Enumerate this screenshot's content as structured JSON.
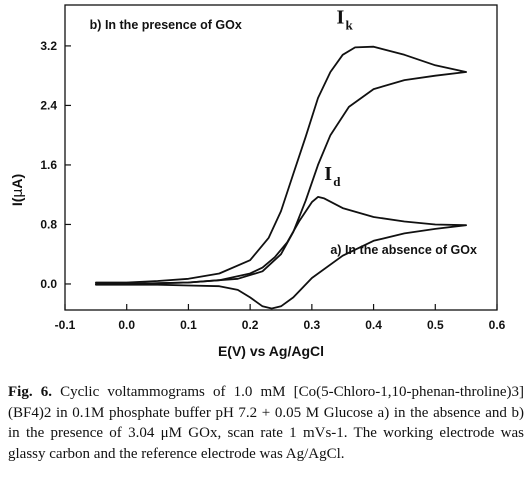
{
  "chart_data": {
    "type": "line",
    "title": "",
    "xlabel": "E(V) vs Ag/AgCl",
    "ylabel_main": "I(",
    "ylabel_mu": "μ",
    "ylabel_end": "A)",
    "xlim": [
      -0.1,
      0.6
    ],
    "ylim": [
      -0.35,
      3.75
    ],
    "x_ticks": [
      -0.1,
      0.0,
      0.1,
      0.2,
      0.3,
      0.4,
      0.5,
      0.6
    ],
    "x_tick_labels": [
      "-0.1",
      "0.0",
      "0.1",
      "0.2",
      "0.3",
      "0.4",
      "0.5",
      "0.6"
    ],
    "y_ticks": [
      0.0,
      0.8,
      1.6,
      2.4,
      3.2
    ],
    "y_tick_labels": [
      "0.0",
      "0.8",
      "1.6",
      "2.4",
      "3.2"
    ],
    "grid": false,
    "series": [
      {
        "name": "a) In the absence  of GOx",
        "color": "#111111",
        "values": [
          [
            -0.05,
            0.0
          ],
          [
            0.0,
            0.0
          ],
          [
            0.05,
            0.01
          ],
          [
            0.1,
            0.02
          ],
          [
            0.15,
            0.05
          ],
          [
            0.2,
            0.14
          ],
          [
            0.22,
            0.22
          ],
          [
            0.24,
            0.36
          ],
          [
            0.26,
            0.56
          ],
          [
            0.28,
            0.85
          ],
          [
            0.3,
            1.1
          ],
          [
            0.31,
            1.17
          ],
          [
            0.32,
            1.15
          ],
          [
            0.35,
            1.02
          ],
          [
            0.4,
            0.9
          ],
          [
            0.45,
            0.84
          ],
          [
            0.5,
            0.8
          ],
          [
            0.55,
            0.79
          ],
          [
            0.5,
            0.74
          ],
          [
            0.45,
            0.68
          ],
          [
            0.4,
            0.58
          ],
          [
            0.35,
            0.38
          ],
          [
            0.3,
            0.08
          ],
          [
            0.27,
            -0.18
          ],
          [
            0.25,
            -0.3
          ],
          [
            0.235,
            -0.33
          ],
          [
            0.22,
            -0.3
          ],
          [
            0.2,
            -0.18
          ],
          [
            0.18,
            -0.08
          ],
          [
            0.15,
            -0.03
          ],
          [
            0.1,
            -0.02
          ],
          [
            0.05,
            -0.01
          ],
          [
            0.0,
            -0.01
          ],
          [
            -0.05,
            -0.01
          ]
        ]
      },
      {
        "name": "b) In the presence of  GOx",
        "color": "#111111",
        "values": [
          [
            -0.05,
            0.02
          ],
          [
            0.0,
            0.02
          ],
          [
            0.05,
            0.04
          ],
          [
            0.1,
            0.07
          ],
          [
            0.15,
            0.14
          ],
          [
            0.2,
            0.32
          ],
          [
            0.23,
            0.62
          ],
          [
            0.25,
            0.98
          ],
          [
            0.27,
            1.48
          ],
          [
            0.29,
            1.98
          ],
          [
            0.31,
            2.5
          ],
          [
            0.33,
            2.85
          ],
          [
            0.35,
            3.08
          ],
          [
            0.37,
            3.18
          ],
          [
            0.4,
            3.19
          ],
          [
            0.45,
            3.08
          ],
          [
            0.5,
            2.94
          ],
          [
            0.55,
            2.85
          ],
          [
            0.5,
            2.8
          ],
          [
            0.45,
            2.74
          ],
          [
            0.4,
            2.62
          ],
          [
            0.36,
            2.38
          ],
          [
            0.33,
            2.0
          ],
          [
            0.31,
            1.6
          ],
          [
            0.29,
            1.12
          ],
          [
            0.27,
            0.7
          ],
          [
            0.25,
            0.4
          ],
          [
            0.22,
            0.17
          ],
          [
            0.18,
            0.07
          ],
          [
            0.1,
            0.02
          ],
          [
            0.0,
            0.0
          ],
          [
            -0.05,
            0.0
          ]
        ]
      }
    ],
    "annotations": [
      {
        "text": "a) In the absence  of GOx",
        "x": 0.33,
        "y": 0.4
      },
      {
        "text": "b) In the presence of  GOx",
        "x": -0.06,
        "y": 3.43
      },
      {
        "text": "I",
        "sub": "k",
        "x": 0.34,
        "y": 3.5
      },
      {
        "text": "I",
        "sub": "d",
        "x": 0.32,
        "y": 1.4
      }
    ]
  },
  "caption": {
    "fig_label": "Fig. 6.",
    "body": " Cyclic voltammograms of 1.0 mM [Co(5-Chloro-1,10-phenan-throline)3](BF4)2 in 0.1M phosphate buffer pH 7.2 + 0.05 M Glucose a) in the absence and b) in the presence of 3.04 μM GOx, scan rate 1 mVs-1. The working electrode was glassy carbon and the reference electrode was Ag/AgCl."
  }
}
